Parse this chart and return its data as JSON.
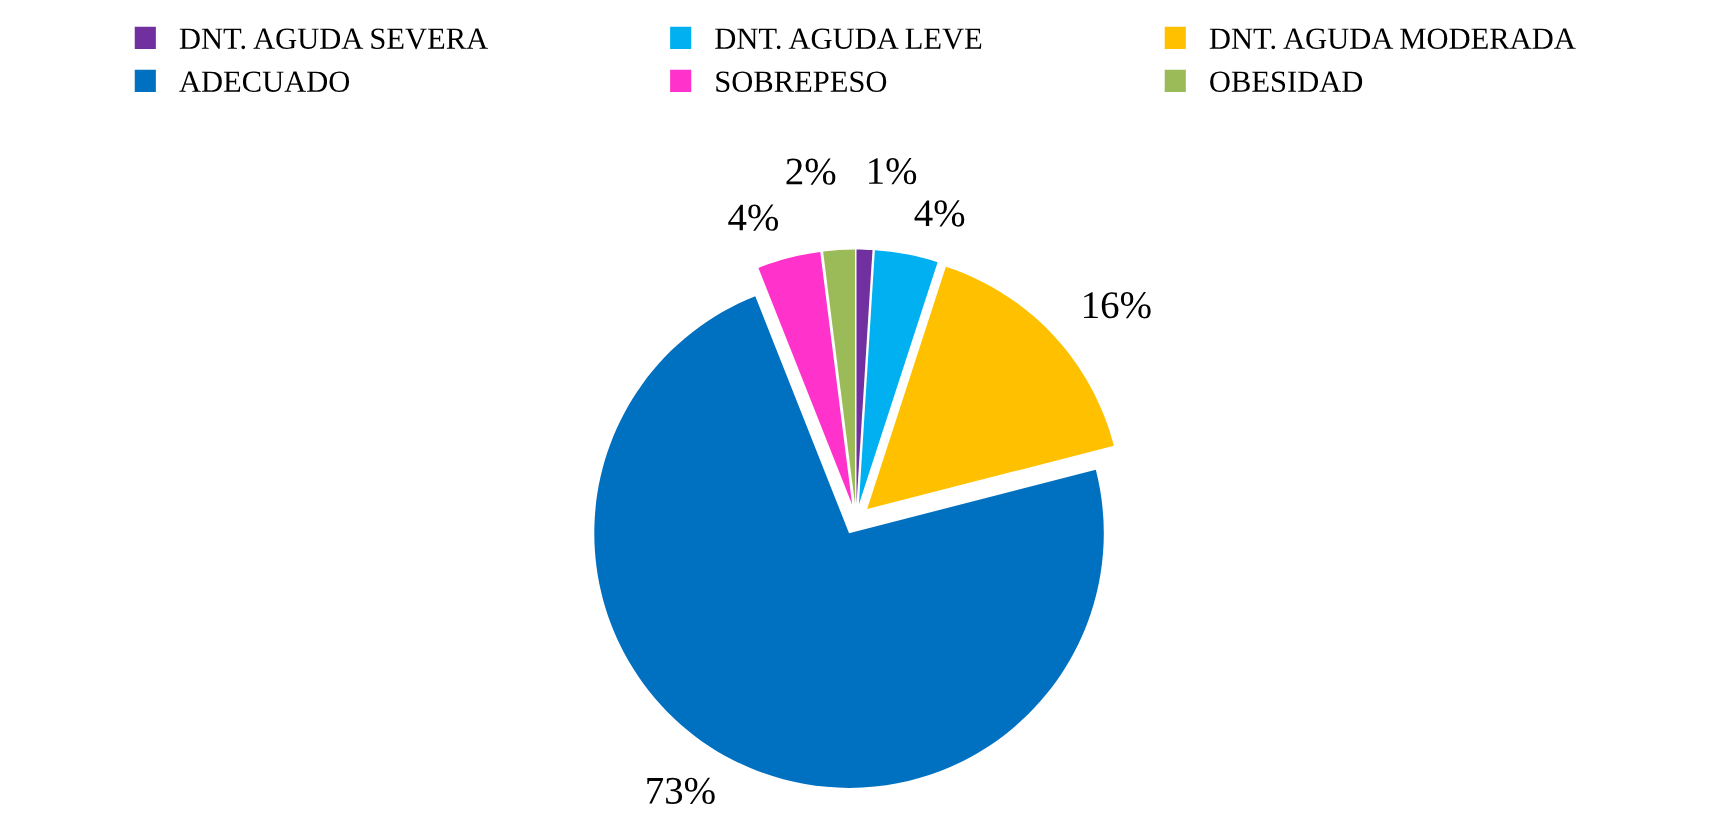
{
  "chart_data": {
    "type": "pie",
    "categories": [
      "DNT. AGUDA SEVERA",
      "DNT. AGUDA LEVE",
      "DNT. AGUDA MODERADA",
      "ADECUADO",
      "SOBREPESO",
      "OBESIDAD"
    ],
    "values": [
      1,
      4,
      16,
      73,
      4,
      2
    ],
    "value_labels": [
      "1%",
      "4%",
      "16%",
      "73%",
      "4%",
      "2%"
    ],
    "colors": [
      "#7030a0",
      "#00b0f0",
      "#ffc000",
      "#0070c0",
      "#ff33cc",
      "#9bbb59"
    ],
    "legend": "top"
  }
}
